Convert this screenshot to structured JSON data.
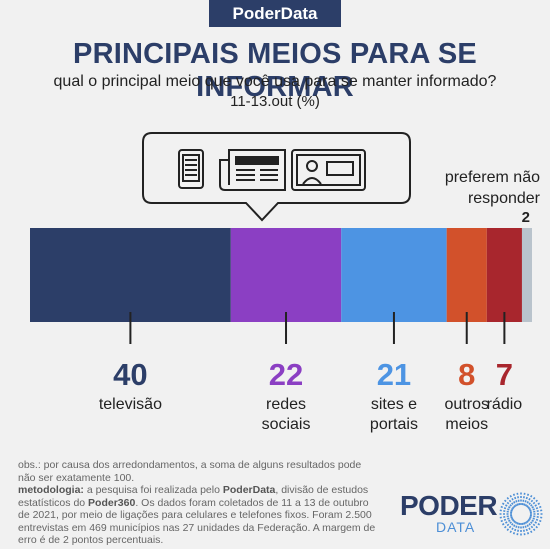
{
  "header": {
    "brand": "PoderData",
    "title": "PRINCIPAIS MEIOS PARA SE INFORMAR",
    "subtitle": "qual o principal meio que você usa para se manter informado?",
    "daterange": "11-13.out  (%)"
  },
  "chart_data": {
    "type": "bar",
    "orientation": "horizontal-stacked",
    "title": "PRINCIPAIS MEIOS PARA SE INFORMAR",
    "categories": [
      "televisão",
      "redes sociais",
      "sites e portais",
      "outros meios",
      "rádio",
      "preferem não responder"
    ],
    "labels_display": [
      "televisão",
      "redes\nsociais",
      "sites e\nportais",
      "outros\nmeios",
      "rádio",
      "preferem não\nresponder"
    ],
    "values": [
      40,
      22,
      21,
      8,
      7,
      2
    ],
    "colors": [
      "#2c3e68",
      "#8b3fc3",
      "#4d94e3",
      "#d2512b",
      "#a8262d",
      "#b9c3cc"
    ],
    "unit": "%"
  },
  "no_response": {
    "label": "preferem não\nresponder",
    "value": "2"
  },
  "icons": [
    "phone-icon",
    "newspaper-icon",
    "tv-icon"
  ],
  "notes": {
    "obs": "obs.: por causa dos arredondamentos, a soma de alguns resultados pode não ser exatamente 100.",
    "meth_label": "metodologia:",
    "meth_text_1": " a pesquisa foi realizada pelo ",
    "meth_brand_1": "PoderData",
    "meth_text_2": ", divisão de estudos estatísticos do ",
    "meth_brand_2": "Poder360",
    "meth_text_3": ". Os dados foram coletados de 11 a 13 de outubro de 2021, por meio de ligações para celulares e telefones fixos. Foram 2.500 entrevistas em 469 municípios nas 27 unidades da Federação. A margem de erro é de 2 pontos percentuais."
  },
  "logo": {
    "word": "PODER",
    "sub": "DATA"
  }
}
